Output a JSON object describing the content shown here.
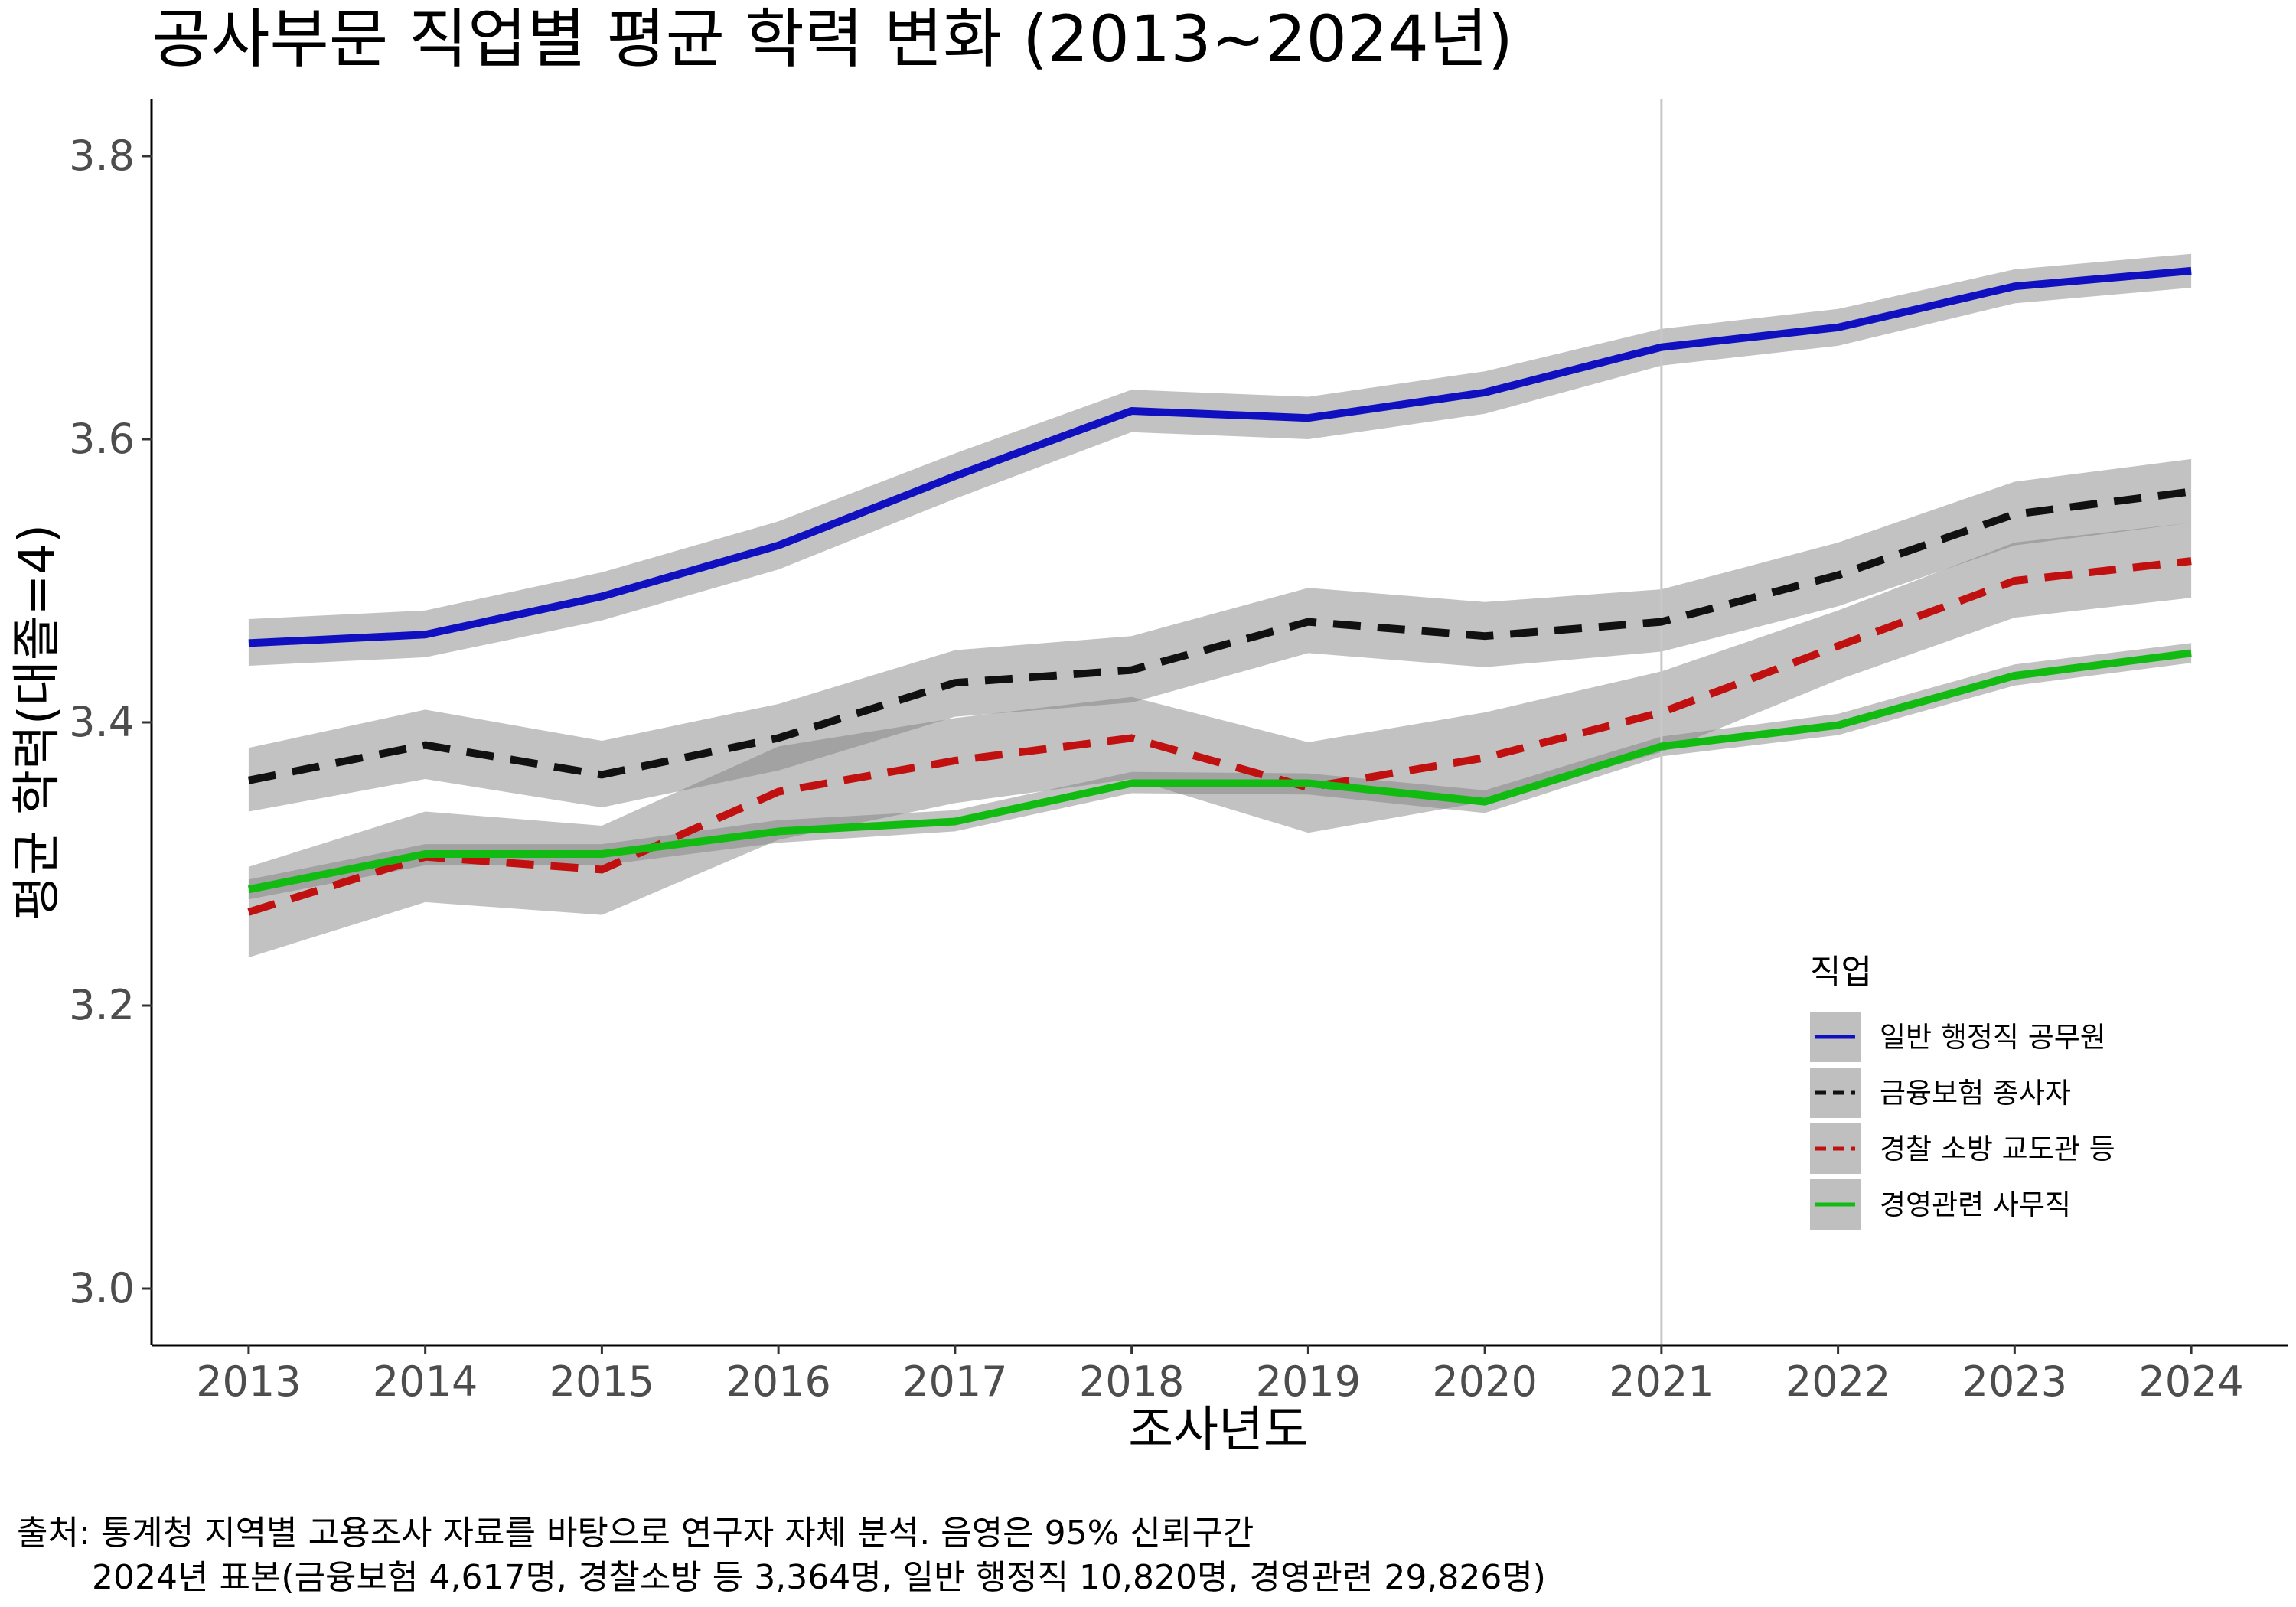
{
  "chart_data": {
    "type": "line",
    "title": "공사부문 직업별 평균 학력 변화 (2013~2024년)",
    "xlabel": "조사년도",
    "ylabel": "평균 학력(대졸=4)",
    "x": [
      2013,
      2014,
      2015,
      2016,
      2017,
      2018,
      2019,
      2020,
      2021,
      2022,
      2023,
      2024
    ],
    "xticks": [
      "2013",
      "2014",
      "2015",
      "2016",
      "2017",
      "2018",
      "2019",
      "2020",
      "2021",
      "2022",
      "2023",
      "2024"
    ],
    "yticks": [
      "3.0",
      "3.2",
      "3.4",
      "3.6",
      "3.8"
    ],
    "ylim": [
      2.96,
      3.84
    ],
    "vline_x": 2021,
    "grid": false,
    "legend": {
      "title": "직업",
      "position": "bottom-right"
    },
    "series": [
      {
        "name": "일반 행정직 공무원",
        "color": "#1010c0",
        "dash": "solid",
        "values": [
          3.456,
          3.462,
          3.489,
          3.525,
          3.574,
          3.62,
          3.615,
          3.633,
          3.665,
          3.679,
          3.708,
          3.719
        ],
        "lower": [
          3.44,
          3.446,
          3.472,
          3.508,
          3.558,
          3.605,
          3.6,
          3.618,
          3.652,
          3.666,
          3.696,
          3.707
        ],
        "upper": [
          3.473,
          3.479,
          3.506,
          3.542,
          3.59,
          3.635,
          3.63,
          3.648,
          3.678,
          3.692,
          3.72,
          3.731
        ]
      },
      {
        "name": "금융보험 종사자",
        "color": "#111111",
        "dash": "dashed",
        "values": [
          3.359,
          3.384,
          3.363,
          3.389,
          3.428,
          3.437,
          3.471,
          3.461,
          3.471,
          3.504,
          3.547,
          3.563
        ],
        "lower": [
          3.337,
          3.36,
          3.34,
          3.366,
          3.404,
          3.414,
          3.449,
          3.439,
          3.45,
          3.482,
          3.525,
          3.541
        ],
        "upper": [
          3.382,
          3.409,
          3.387,
          3.413,
          3.451,
          3.461,
          3.495,
          3.485,
          3.494,
          3.527,
          3.57,
          3.586
        ]
      },
      {
        "name": "경찰 소방 교도관 등",
        "color": "#c01010",
        "dash": "dashed",
        "values": [
          3.266,
          3.305,
          3.296,
          3.351,
          3.373,
          3.389,
          3.354,
          3.375,
          3.407,
          3.454,
          3.5,
          3.514
        ],
        "lower": [
          3.234,
          3.273,
          3.264,
          3.317,
          3.343,
          3.36,
          3.322,
          3.344,
          3.379,
          3.43,
          3.474,
          3.488
        ],
        "upper": [
          3.298,
          3.337,
          3.327,
          3.383,
          3.403,
          3.418,
          3.386,
          3.407,
          3.436,
          3.479,
          3.527,
          3.541
        ]
      },
      {
        "name": "경영관련 사무직",
        "color": "#12bb12",
        "dash": "solid",
        "values": [
          3.282,
          3.307,
          3.307,
          3.323,
          3.33,
          3.357,
          3.357,
          3.344,
          3.383,
          3.398,
          3.433,
          3.449
        ],
        "lower": [
          3.275,
          3.299,
          3.299,
          3.315,
          3.323,
          3.35,
          3.349,
          3.336,
          3.376,
          3.391,
          3.426,
          3.442
        ],
        "upper": [
          3.289,
          3.314,
          3.314,
          3.331,
          3.338,
          3.365,
          3.364,
          3.352,
          3.39,
          3.406,
          3.441,
          3.456
        ]
      }
    ]
  },
  "caption": {
    "line1": "출처: 통계청 지역별 고용조사 자료를 바탕으로 연구자 자체 분석. 음영은 95% 신뢰구간",
    "line2": "2024년 표본(금융보험 4,617명, 경찰소방 등 3,364명, 일반 행정직 10,820명, 경영관련 29,826명)"
  }
}
